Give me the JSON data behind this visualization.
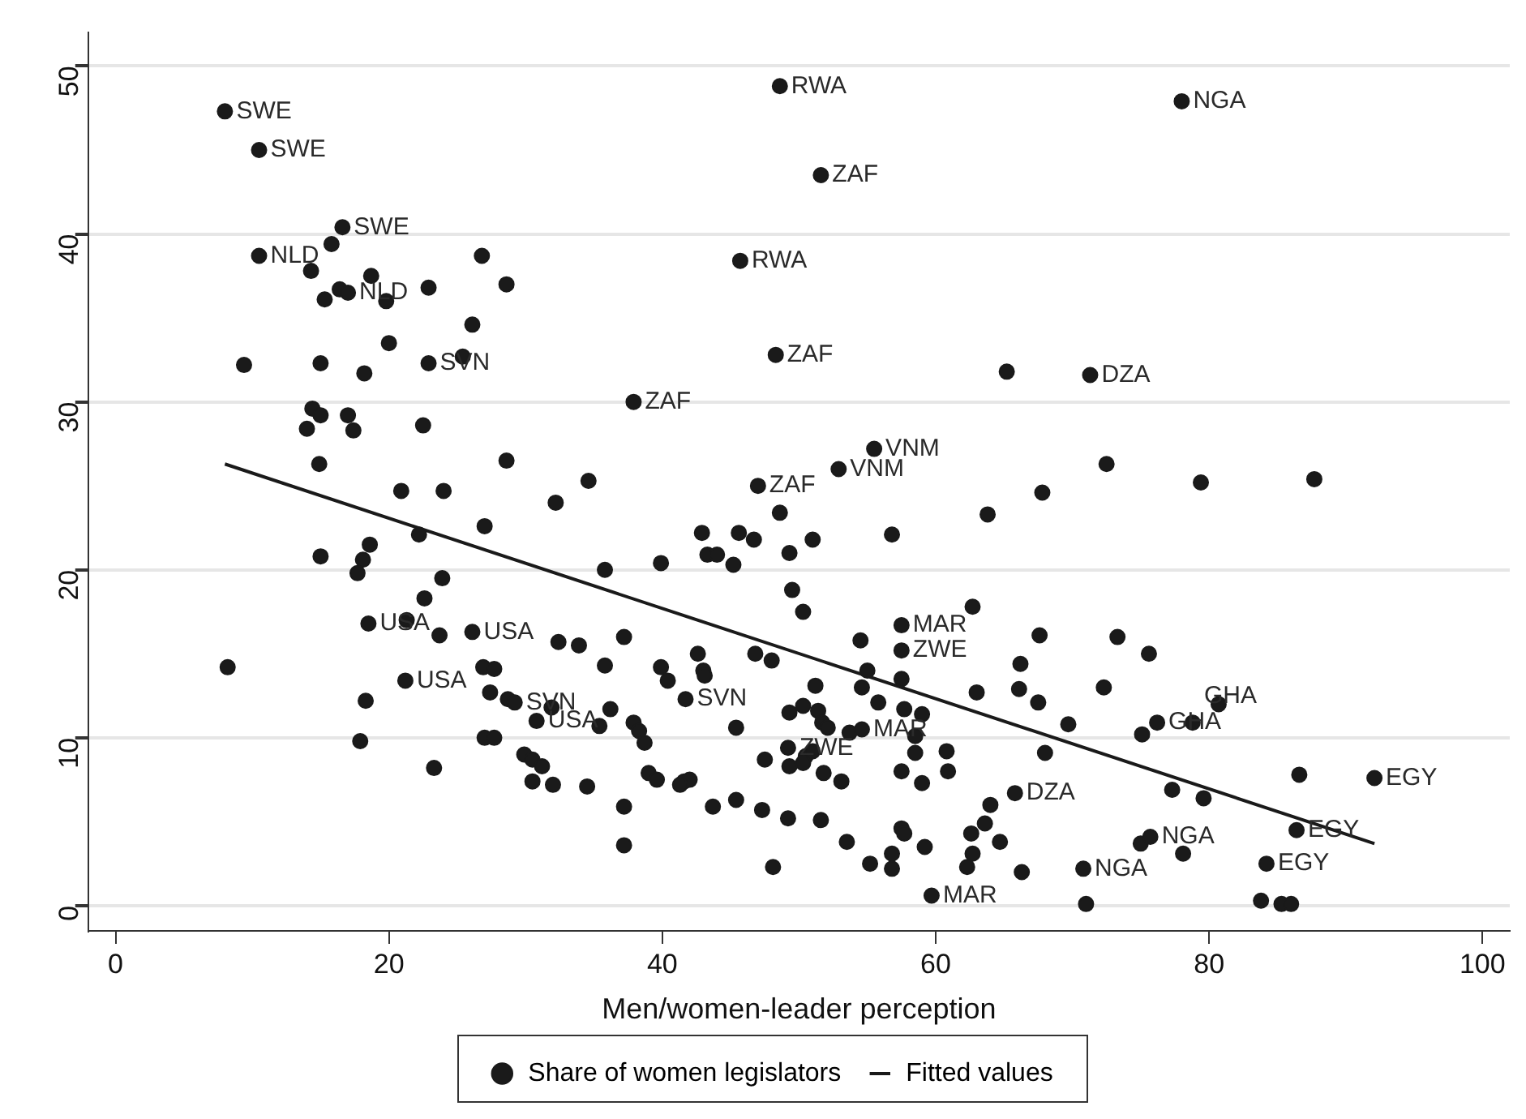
{
  "chart_data": {
    "type": "scatter",
    "xlabel": "Men/women-leader perception",
    "xlim": [
      -2,
      102
    ],
    "xticks": [
      0,
      20,
      40,
      60,
      80,
      100
    ],
    "ylim": [
      -1.5,
      52
    ],
    "yticks": [
      0,
      10,
      20,
      30,
      40,
      50
    ],
    "grid": "y",
    "legend": "bottom",
    "series": [
      {
        "name": "Share of women legislators",
        "color": "#1a1a1a",
        "marker": "circle",
        "x": [
          8.0,
          10.5,
          16.6,
          15.8,
          10.5,
          14.3,
          18.7,
          16.4,
          17.0,
          15.3,
          19.8,
          22.9,
          26.8,
          28.6,
          26.1,
          20.0,
          9.4,
          15.0,
          18.2,
          22.9,
          25.4,
          14.4,
          15.0,
          17.0,
          14.0,
          17.4,
          22.5,
          14.9,
          28.6,
          20.9,
          24.0,
          32.2,
          22.2,
          27.0,
          18.6,
          15.0,
          18.1,
          17.7,
          23.9,
          22.6,
          18.5,
          21.3,
          23.7,
          26.1,
          32.4,
          33.9,
          8.2,
          26.9,
          27.7,
          21.2,
          18.3,
          27.4,
          28.7,
          29.2,
          31.9,
          30.8,
          17.9,
          27.0,
          27.7,
          23.3,
          29.9,
          30.5,
          31.2,
          30.5,
          32.0,
          34.6,
          55.5,
          52.9,
          47.0,
          48.6,
          63.8,
          67.8,
          56.8,
          42.9,
          45.6,
          46.7,
          51.0,
          49.3,
          43.3,
          44.0,
          45.2,
          39.9,
          35.8,
          49.5,
          50.3,
          62.7,
          57.5,
          57.5,
          54.5,
          67.6,
          66.2,
          37.2,
          35.8,
          42.6,
          46.8,
          48.0,
          39.9,
          43.0,
          43.1,
          40.4,
          55.0,
          54.6,
          57.5,
          51.2,
          63.0,
          66.1,
          67.5,
          41.7,
          36.2,
          35.4,
          37.9,
          38.3,
          38.7,
          45.4,
          49.3,
          50.3,
          51.4,
          51.7,
          52.1,
          53.7,
          54.6,
          55.8,
          57.7,
          59.0,
          58.5,
          60.8,
          58.5,
          49.2,
          50.5,
          51.0,
          47.5,
          49.3,
          50.3,
          51.8,
          53.1,
          57.5,
          59.0,
          60.9,
          68.0,
          65.8,
          64.0,
          63.6,
          62.6,
          64.7,
          62.7,
          62.3,
          66.3,
          57.5,
          57.7,
          59.2,
          56.8,
          56.8,
          55.2,
          53.5,
          51.6,
          49.2,
          47.3,
          45.4,
          43.7,
          41.6,
          42.0,
          41.3,
          39.0,
          39.6,
          34.5,
          37.2,
          37.2,
          48.1,
          48.6,
          51.6,
          45.7,
          48.3,
          65.2,
          37.9,
          78.0,
          71.3,
          72.5,
          79.4,
          87.7,
          73.3,
          75.6,
          72.3,
          69.7,
          76.2,
          75.1,
          78.8,
          80.7,
          77.3,
          79.6,
          86.6,
          92.1,
          86.4,
          75.0,
          75.7,
          78.1,
          70.8,
          84.2,
          59.7,
          71.0,
          83.8,
          85.3,
          86.0
        ],
        "values": [
          47.3,
          45.0,
          40.4,
          39.4,
          38.7,
          37.8,
          37.5,
          36.7,
          36.5,
          36.1,
          36.0,
          36.8,
          38.7,
          37.0,
          34.6,
          33.5,
          32.2,
          32.3,
          31.7,
          32.3,
          32.7,
          29.6,
          29.2,
          29.2,
          28.4,
          28.3,
          28.6,
          26.3,
          26.5,
          24.7,
          24.7,
          24.0,
          22.1,
          22.6,
          21.5,
          20.8,
          20.6,
          19.8,
          19.5,
          18.3,
          16.8,
          17.0,
          16.1,
          16.3,
          15.7,
          15.5,
          14.2,
          14.2,
          14.1,
          13.4,
          12.2,
          12.7,
          12.3,
          12.1,
          11.8,
          11.0,
          9.8,
          10.0,
          10.0,
          8.2,
          9.0,
          8.7,
          8.3,
          7.4,
          7.2,
          25.3,
          27.2,
          26.0,
          25.0,
          23.4,
          23.3,
          24.6,
          22.1,
          22.2,
          22.2,
          21.8,
          21.8,
          21.0,
          20.9,
          20.9,
          20.3,
          20.4,
          20.0,
          18.8,
          17.5,
          17.8,
          16.7,
          15.2,
          15.8,
          16.1,
          14.4,
          16.0,
          14.3,
          15.0,
          15.0,
          14.6,
          14.2,
          14.0,
          13.7,
          13.4,
          14.0,
          13.0,
          13.5,
          13.1,
          12.7,
          12.9,
          12.1,
          12.3,
          11.7,
          10.7,
          10.9,
          10.4,
          9.7,
          10.6,
          11.5,
          11.9,
          11.6,
          10.9,
          10.6,
          10.3,
          10.5,
          12.1,
          11.7,
          11.4,
          10.1,
          9.2,
          9.1,
          9.4,
          8.9,
          9.2,
          8.7,
          8.3,
          8.5,
          7.9,
          7.4,
          8.0,
          7.3,
          8.0,
          9.1,
          6.7,
          6.0,
          4.9,
          4.3,
          3.8,
          3.1,
          2.3,
          2.0,
          4.6,
          4.3,
          3.5,
          3.1,
          2.2,
          2.5,
          3.8,
          5.1,
          5.2,
          5.7,
          6.3,
          5.9,
          7.4,
          7.5,
          7.2,
          7.9,
          7.5,
          7.1,
          5.9,
          3.6,
          2.3,
          48.8,
          43.5,
          38.4,
          32.8,
          31.8,
          30.0,
          47.9,
          31.6,
          26.3,
          25.2,
          25.4,
          16.0,
          15.0,
          13.0,
          10.8,
          10.9,
          10.2,
          10.9,
          12.0,
          6.9,
          6.4,
          7.8,
          7.6,
          4.5,
          3.7,
          4.1,
          3.1,
          2.2,
          2.5,
          0.6,
          0.1,
          0.3,
          0.1,
          0.1
        ]
      },
      {
        "name": "Fitted values",
        "type": "line",
        "color": "#1a1a1a",
        "marker": "none",
        "x": [
          8.0,
          92.1
        ],
        "values": [
          26.3,
          3.7
        ]
      }
    ],
    "annotations": [
      {
        "text": "SWE",
        "x": 8.0,
        "y": 47.3
      },
      {
        "text": "SWE",
        "x": 10.5,
        "y": 45.0
      },
      {
        "text": "SWE",
        "x": 16.6,
        "y": 40.4
      },
      {
        "text": "NLD",
        "x": 10.5,
        "y": 38.7
      },
      {
        "text": "NLD",
        "x": 17.0,
        "y": 36.5
      },
      {
        "text": "SVN",
        "x": 22.9,
        "y": 32.3
      },
      {
        "text": "RWA",
        "x": 48.6,
        "y": 48.8
      },
      {
        "text": "ZAF",
        "x": 51.6,
        "y": 43.5
      },
      {
        "text": "RWA",
        "x": 45.7,
        "y": 38.4
      },
      {
        "text": "ZAF",
        "x": 48.3,
        "y": 32.8
      },
      {
        "text": "ZAF",
        "x": 37.9,
        "y": 30.0
      },
      {
        "text": "NGA",
        "x": 78.0,
        "y": 47.9
      },
      {
        "text": "DZA",
        "x": 71.3,
        "y": 31.6
      },
      {
        "text": "VNM",
        "x": 55.5,
        "y": 27.2
      },
      {
        "text": "VNM",
        "x": 52.9,
        "y": 26.0
      },
      {
        "text": "ZAF",
        "x": 47.0,
        "y": 25.0
      },
      {
        "text": "USA",
        "x": 18.5,
        "y": 16.8
      },
      {
        "text": "USA",
        "x": 26.1,
        "y": 16.3
      },
      {
        "text": "USA",
        "x": 21.2,
        "y": 13.4
      },
      {
        "text": "SVN",
        "x": 29.2,
        "y": 12.1
      },
      {
        "text": "USA",
        "x": 30.8,
        "y": 11.0
      },
      {
        "text": "SVN",
        "x": 41.7,
        "y": 12.3
      },
      {
        "text": "MAR",
        "x": 57.5,
        "y": 16.7
      },
      {
        "text": "ZWE",
        "x": 57.5,
        "y": 15.2
      },
      {
        "text": "ZWE",
        "x": 49.2,
        "y": 9.4
      },
      {
        "text": "MAR",
        "x": 54.6,
        "y": 10.5
      },
      {
        "text": "DZA",
        "x": 65.8,
        "y": 6.7
      },
      {
        "text": "GHA",
        "x": 76.2,
        "y": 10.9
      },
      {
        "text": "GHA",
        "x": 78.8,
        "y": 10.9
      },
      {
        "text": "EGY",
        "x": 92.1,
        "y": 7.6
      },
      {
        "text": "EGY",
        "x": 86.4,
        "y": 4.5
      },
      {
        "text": "EGY",
        "x": 84.2,
        "y": 2.5
      },
      {
        "text": "NGA",
        "x": 75.7,
        "y": 4.1
      },
      {
        "text": "NGA",
        "x": 70.8,
        "y": 2.2
      },
      {
        "text": "MAR",
        "x": 59.7,
        "y": 0.6
      }
    ]
  }
}
